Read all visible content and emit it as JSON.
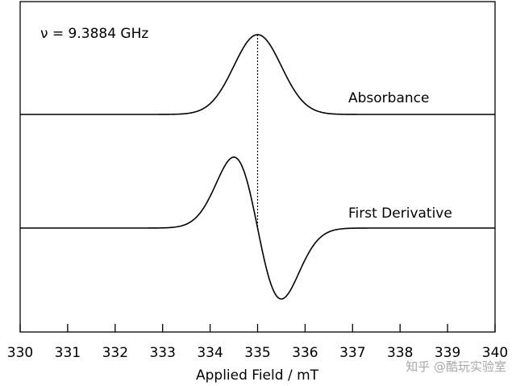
{
  "chart_data": {
    "type": "line",
    "xlabel": "Applied Field / mT",
    "ylabel": "",
    "title": "",
    "xlim": [
      330,
      340
    ],
    "xticks": [
      "330",
      "331",
      "332",
      "333",
      "334",
      "335",
      "336",
      "337",
      "338",
      "339",
      "340"
    ],
    "frequency_label": "ν = 9.3884 GHz",
    "center_field": 335.0,
    "grid": false,
    "series": [
      {
        "name": "Absorbance",
        "type": "gaussian",
        "center": 335.0,
        "sigma": 0.5,
        "amplitude": 1.0
      },
      {
        "name": "First Derivative",
        "type": "gaussian_derivative",
        "center": 335.0,
        "sigma": 0.5,
        "amplitude": 1.0
      }
    ]
  },
  "watermark": "知乎 @酷玩实验室"
}
